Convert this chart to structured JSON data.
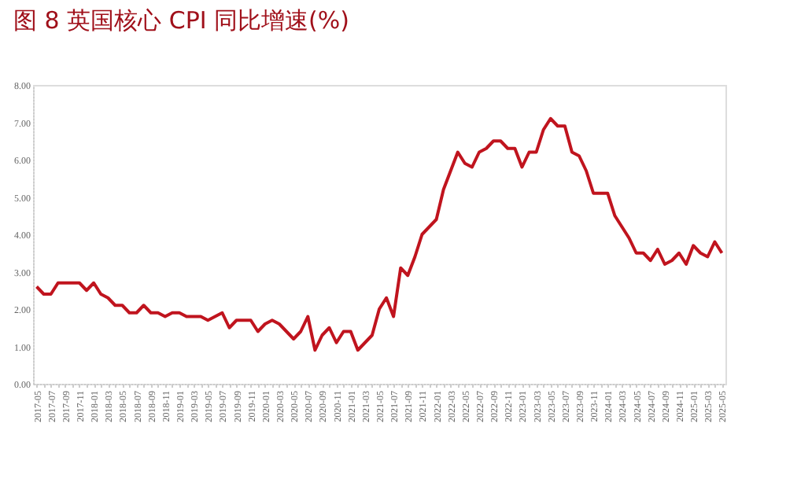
{
  "chart_data": {
    "type": "line",
    "title": "图 8 英国核心 CPI 同比增速(%)",
    "categories": [
      "2017-05",
      null,
      "2017-07",
      null,
      "2017-09",
      null,
      "2017-11",
      null,
      "2018-01",
      null,
      "2018-03",
      null,
      "2018-05",
      null,
      "2018-07",
      null,
      "2018-09",
      null,
      "2018-11",
      null,
      "2019-01",
      null,
      "2019-03",
      null,
      "2019-05",
      null,
      "2019-07",
      null,
      "2019-09",
      null,
      "2019-11",
      null,
      "2020-01",
      null,
      "2020-03",
      null,
      "2020-05",
      null,
      "2020-07",
      null,
      "2020-09",
      null,
      "2020-11",
      null,
      "2021-01",
      null,
      "2021-03",
      null,
      "2021-05",
      null,
      "2021-07",
      null,
      "2021-09",
      null,
      "2021-11",
      null,
      "2022-01",
      null,
      "2022-03",
      null,
      "2022-05",
      null,
      "2022-07",
      null,
      "2022-09",
      null,
      "2022-11",
      null,
      "2023-01",
      null,
      "2023-03",
      null,
      "2023-05",
      null,
      "2023-07",
      null,
      "2023-09",
      null,
      "2023-11",
      null,
      "2024-01",
      null,
      "2024-03",
      null,
      "2024-05",
      null,
      "2024-07",
      null,
      "2024-09",
      null,
      "2024-11",
      null,
      "2025-01",
      null,
      "2025-03",
      null,
      "2025-05"
    ],
    "series": [
      {
        "color": "#c0141e",
        "values": [
          2.6,
          2.4,
          2.4,
          2.7,
          2.7,
          2.7,
          2.7,
          2.5,
          2.7,
          2.4,
          2.3,
          2.1,
          2.1,
          1.9,
          1.9,
          2.1,
          1.9,
          1.9,
          1.8,
          1.9,
          1.9,
          1.8,
          1.8,
          1.8,
          1.7,
          1.8,
          1.9,
          1.5,
          1.7,
          1.7,
          1.7,
          1.4,
          1.6,
          1.7,
          1.6,
          1.4,
          1.2,
          1.4,
          1.8,
          0.9,
          1.3,
          1.5,
          1.1,
          1.4,
          1.4,
          0.9,
          1.1,
          1.3,
          2.0,
          2.3,
          1.8,
          3.1,
          2.9,
          3.4,
          4.0,
          4.2,
          4.4,
          5.2,
          5.7,
          6.2,
          5.9,
          5.8,
          6.2,
          6.3,
          6.5,
          6.5,
          6.3,
          6.3,
          5.8,
          6.2,
          6.2,
          6.8,
          7.1,
          6.9,
          6.9,
          6.2,
          6.1,
          5.7,
          5.1,
          5.1,
          5.1,
          4.5,
          4.2,
          3.9,
          3.5,
          3.5,
          3.3,
          3.6,
          3.2,
          3.3,
          3.5,
          3.2,
          3.7,
          3.5,
          3.4,
          3.8,
          3.5
        ]
      }
    ],
    "ylim": [
      0,
      8
    ],
    "yticks": [
      {
        "value": 0,
        "label": "0.00"
      },
      {
        "value": 1,
        "label": "1.00"
      },
      {
        "value": 2,
        "label": "2.00"
      },
      {
        "value": 3,
        "label": "3.00"
      },
      {
        "value": 4,
        "label": "4.00"
      },
      {
        "value": 5,
        "label": "5.00"
      },
      {
        "value": 6,
        "label": "6.00"
      },
      {
        "value": 7,
        "label": "7.00"
      },
      {
        "value": 8,
        "label": "8.00"
      }
    ],
    "grid": false,
    "legend": false,
    "marker": "none",
    "line_style": "solid"
  }
}
